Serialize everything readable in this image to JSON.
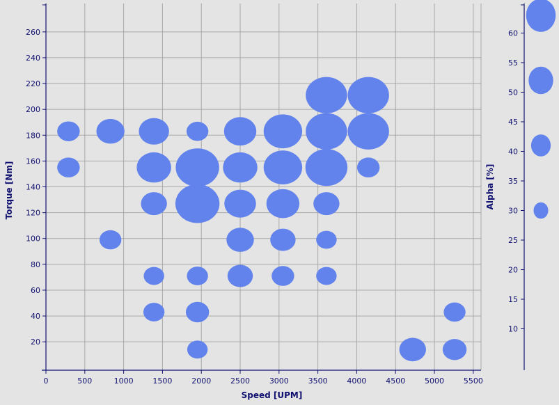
{
  "chart_data": {
    "type": "scatter",
    "title": "",
    "xlabel": "Speed [UPM]",
    "ylabel": "Torque [Nm]",
    "size_label": "Alpha [%]",
    "xlim": [
      0,
      5600
    ],
    "ylim": [
      -2,
      282
    ],
    "x_ticks": [
      0,
      500,
      1000,
      1500,
      2000,
      2500,
      3000,
      3500,
      4000,
      4500,
      5000,
      5500
    ],
    "y_ticks": [
      20,
      40,
      60,
      80,
      100,
      120,
      140,
      160,
      180,
      200,
      220,
      240,
      260
    ],
    "size_ticks": [
      10,
      15,
      20,
      25,
      30,
      35,
      40,
      45,
      50,
      55,
      60
    ],
    "size_range": [
      3,
      65
    ],
    "size_legend_values": [
      63,
      52,
      41,
      30
    ],
    "grid": true,
    "colors": {
      "marker": "#6283ec",
      "axis": "#101070",
      "grid": "#a8a8a8",
      "plot_bg": "#e4e4e4"
    },
    "points": [
      {
        "x": 290,
        "y": 183,
        "alpha": 30
      },
      {
        "x": 830,
        "y": 183,
        "alpha": 38
      },
      {
        "x": 1390,
        "y": 183,
        "alpha": 41
      },
      {
        "x": 1950,
        "y": 183,
        "alpha": 29
      },
      {
        "x": 2500,
        "y": 183,
        "alpha": 44
      },
      {
        "x": 3050,
        "y": 183,
        "alpha": 53
      },
      {
        "x": 3610,
        "y": 183,
        "alpha": 57
      },
      {
        "x": 4150,
        "y": 183,
        "alpha": 57
      },
      {
        "x": 3610,
        "y": 211,
        "alpha": 57
      },
      {
        "x": 4150,
        "y": 211,
        "alpha": 57
      },
      {
        "x": 290,
        "y": 155,
        "alpha": 30
      },
      {
        "x": 1390,
        "y": 155,
        "alpha": 47
      },
      {
        "x": 1950,
        "y": 155,
        "alpha": 60
      },
      {
        "x": 2500,
        "y": 155,
        "alpha": 47
      },
      {
        "x": 3050,
        "y": 155,
        "alpha": 53
      },
      {
        "x": 3610,
        "y": 155,
        "alpha": 58
      },
      {
        "x": 4150,
        "y": 155,
        "alpha": 30
      },
      {
        "x": 1390,
        "y": 127,
        "alpha": 35
      },
      {
        "x": 1950,
        "y": 127,
        "alpha": 61
      },
      {
        "x": 2500,
        "y": 127,
        "alpha": 43
      },
      {
        "x": 3050,
        "y": 127,
        "alpha": 45
      },
      {
        "x": 3610,
        "y": 127,
        "alpha": 35
      },
      {
        "x": 830,
        "y": 99,
        "alpha": 29
      },
      {
        "x": 2500,
        "y": 99,
        "alpha": 37
      },
      {
        "x": 3050,
        "y": 99,
        "alpha": 34
      },
      {
        "x": 3610,
        "y": 99,
        "alpha": 27
      },
      {
        "x": 1390,
        "y": 71,
        "alpha": 27
      },
      {
        "x": 1950,
        "y": 71,
        "alpha": 28
      },
      {
        "x": 2500,
        "y": 71,
        "alpha": 34
      },
      {
        "x": 3050,
        "y": 71,
        "alpha": 30
      },
      {
        "x": 3610,
        "y": 71,
        "alpha": 27
      },
      {
        "x": 1390,
        "y": 43,
        "alpha": 28
      },
      {
        "x": 1950,
        "y": 43,
        "alpha": 31
      },
      {
        "x": 5260,
        "y": 43,
        "alpha": 29
      },
      {
        "x": 1950,
        "y": 14,
        "alpha": 27
      },
      {
        "x": 4720,
        "y": 14,
        "alpha": 36
      },
      {
        "x": 5260,
        "y": 14,
        "alpha": 32
      }
    ]
  }
}
